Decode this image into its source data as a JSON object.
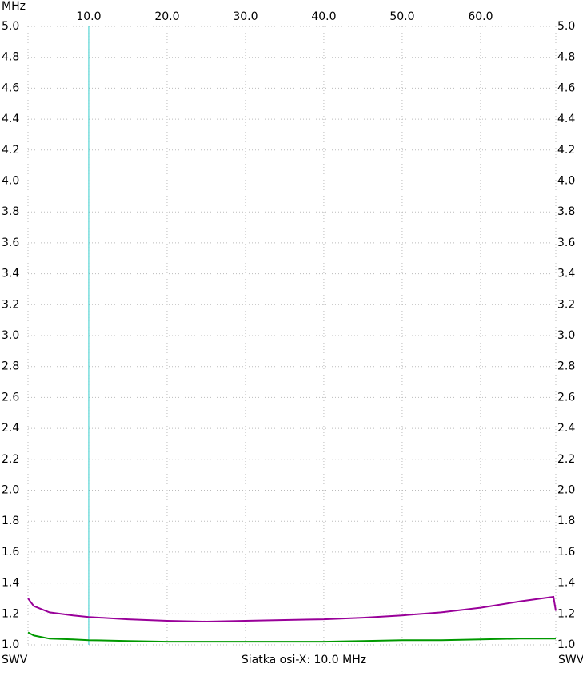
{
  "chart_data": {
    "type": "line",
    "x_unit_label": "MHz",
    "y_axis_label": "SWV",
    "y2_axis_label": "SWV",
    "footer": "Siatka osi-X: 10.0 MHz",
    "xlim": [
      2.25,
      69.6
    ],
    "ylim": [
      1.0,
      5.0
    ],
    "xticks": [
      {
        "value": 10,
        "label": "10.0"
      },
      {
        "value": 20,
        "label": "20.0"
      },
      {
        "value": 30,
        "label": "30.0"
      },
      {
        "value": 40,
        "label": "40.0"
      },
      {
        "value": 50,
        "label": "50.0"
      },
      {
        "value": 60,
        "label": "60.0"
      }
    ],
    "yticks": [
      {
        "value": 1,
        "label": "1.0"
      },
      1.2,
      1.4,
      1.6,
      1.8,
      {
        "value": 2,
        "label": "2.0"
      },
      2.2,
      2.4,
      2.6,
      2.8,
      {
        "value": 3,
        "label": "3.0"
      },
      3.2,
      3.4,
      3.6,
      3.8,
      {
        "value": 4,
        "label": "4.0"
      },
      4.2,
      4.4,
      4.6,
      4.8,
      {
        "value": 5,
        "label": "5.0"
      }
    ],
    "grid": true,
    "cursor_x": 10,
    "cursor_color": "#33cccc",
    "x": [
      2.25,
      3,
      5,
      8,
      10,
      15,
      20,
      25,
      30,
      35,
      40,
      45,
      50,
      55,
      60,
      65,
      69.3,
      69.6
    ],
    "series": [
      {
        "color": "#990099",
        "values": [
          1.3,
          1.25,
          1.21,
          1.19,
          1.18,
          1.165,
          1.155,
          1.15,
          1.155,
          1.16,
          1.165,
          1.175,
          1.19,
          1.21,
          1.24,
          1.28,
          1.31,
          1.22
        ]
      },
      {
        "color": "#009900",
        "values": [
          1.08,
          1.06,
          1.04,
          1.035,
          1.03,
          1.025,
          1.02,
          1.02,
          1.02,
          1.02,
          1.02,
          1.025,
          1.03,
          1.03,
          1.035,
          1.04,
          1.04,
          1.04
        ]
      }
    ]
  }
}
